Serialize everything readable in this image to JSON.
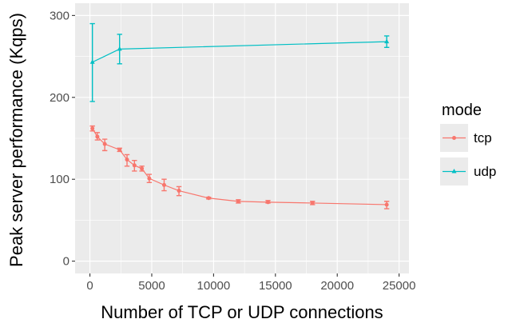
{
  "chart_data": {
    "type": "line",
    "xlabel": "Number of TCP or UDP connections",
    "ylabel": "Peak server performance (Kqps)",
    "xlim": [
      -1200,
      25800
    ],
    "ylim": [
      -15,
      315
    ],
    "x_ticks": [
      0,
      5000,
      10000,
      15000,
      20000,
      25000
    ],
    "y_ticks": [
      0,
      100,
      200,
      300
    ],
    "x_tick_labels": [
      "0",
      "5000",
      "10000",
      "15000",
      "20000",
      "25000"
    ],
    "y_tick_labels": [
      "0",
      "100",
      "200",
      "300"
    ],
    "grid": true,
    "legend": {
      "title": "mode",
      "position": "right"
    },
    "series": [
      {
        "name": "tcp",
        "color": "#F8766D",
        "marker": "circle",
        "points": [
          {
            "x": 200,
            "y": 162,
            "err_low": 159,
            "err_high": 165
          },
          {
            "x": 600,
            "y": 152,
            "err_low": 148,
            "err_high": 157
          },
          {
            "x": 1200,
            "y": 143,
            "err_low": 135,
            "err_high": 149
          },
          {
            "x": 2400,
            "y": 136,
            "err_low": 134,
            "err_high": 138
          },
          {
            "x": 3000,
            "y": 124,
            "err_low": 116,
            "err_high": 130
          },
          {
            "x": 3600,
            "y": 117,
            "err_low": 110,
            "err_high": 123
          },
          {
            "x": 4200,
            "y": 113,
            "err_low": 110,
            "err_high": 116
          },
          {
            "x": 4800,
            "y": 101,
            "err_low": 96,
            "err_high": 106
          },
          {
            "x": 6000,
            "y": 93,
            "err_low": 86,
            "err_high": 100
          },
          {
            "x": 7200,
            "y": 86,
            "err_low": 80,
            "err_high": 91
          },
          {
            "x": 9600,
            "y": 77,
            "err_low": 76,
            "err_high": 78
          },
          {
            "x": 12000,
            "y": 73,
            "err_low": 71,
            "err_high": 75
          },
          {
            "x": 14400,
            "y": 72,
            "err_low": 71,
            "err_high": 74
          },
          {
            "x": 18000,
            "y": 71,
            "err_low": 69,
            "err_high": 73
          },
          {
            "x": 24000,
            "y": 69,
            "err_low": 64,
            "err_high": 73
          }
        ]
      },
      {
        "name": "udp",
        "color": "#00BFC4",
        "marker": "triangle",
        "points": [
          {
            "x": 200,
            "y": 243,
            "err_low": 195,
            "err_high": 290
          },
          {
            "x": 2400,
            "y": 259,
            "err_low": 241,
            "err_high": 277
          },
          {
            "x": 24000,
            "y": 268,
            "err_low": 261,
            "err_high": 275
          }
        ]
      }
    ]
  }
}
